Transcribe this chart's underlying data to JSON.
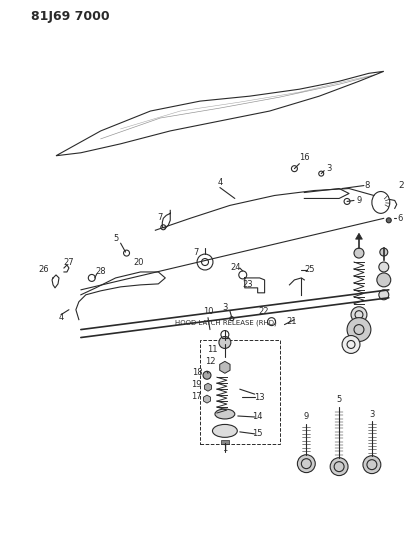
{
  "title": "81J69 7000",
  "bg_color": "#ffffff",
  "fg_color": "#2a2a2a",
  "fig_width": 4.14,
  "fig_height": 5.33,
  "dpi": 100,
  "label_note": "HOOD LATCH RELEASE (RHD)"
}
